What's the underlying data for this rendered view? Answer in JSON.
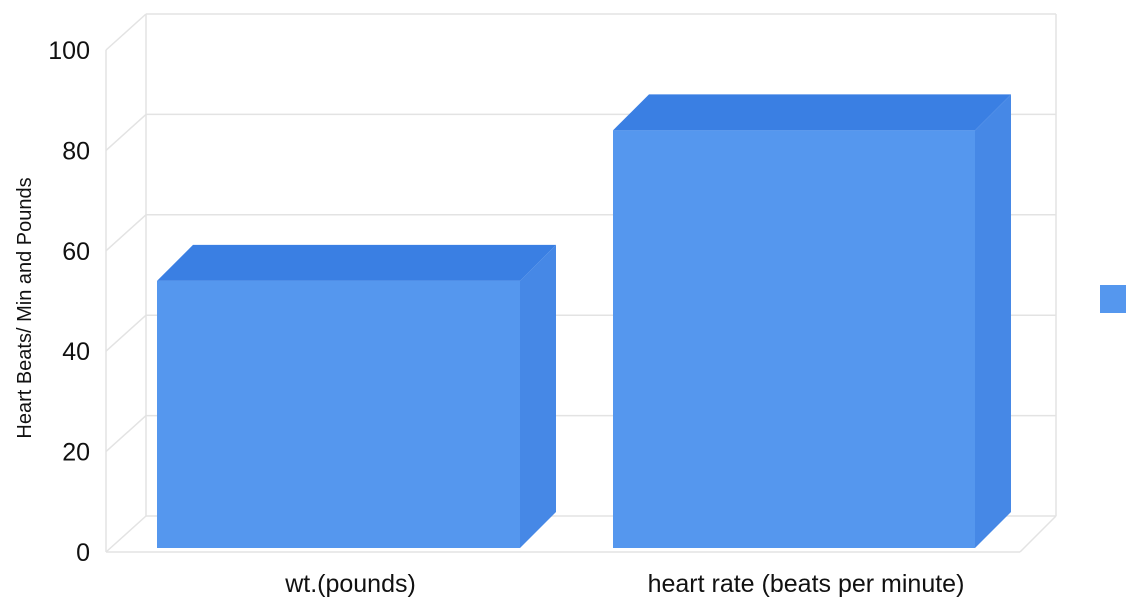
{
  "chart_data": {
    "type": "bar",
    "title": "",
    "xlabel": "",
    "ylabel": "Heart Beats/ Min and Pounds",
    "categories": [
      "wt.(pounds)",
      "heart rate (beats per minute)"
    ],
    "series": [
      {
        "values": [
          54,
          84
        ]
      }
    ],
    "ylim": [
      0,
      100
    ],
    "yticks": [
      0,
      20,
      40,
      60,
      80,
      100
    ],
    "grid": true,
    "legend": "right",
    "colors": {
      "bar_front": "#5597ee",
      "bar_top": "#3a7fe3",
      "bar_side": "#4688e6",
      "grid": "#e3e3e3",
      "legend_swatch": "#5597ee"
    }
  }
}
